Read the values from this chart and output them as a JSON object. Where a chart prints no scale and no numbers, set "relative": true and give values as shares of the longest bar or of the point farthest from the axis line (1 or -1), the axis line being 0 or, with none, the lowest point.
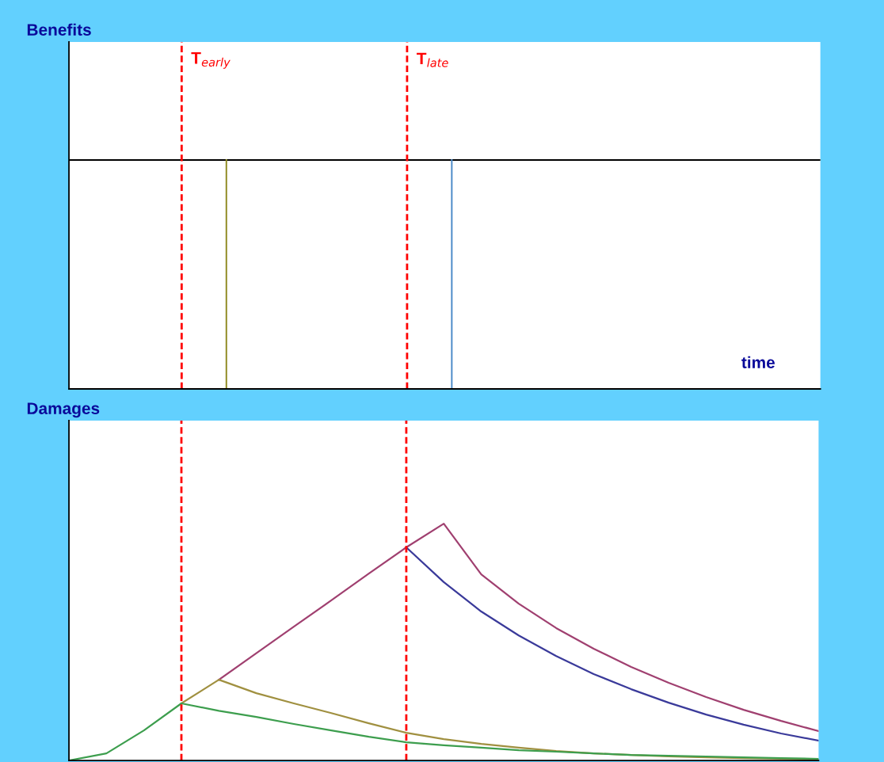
{
  "chart_data": [
    {
      "type": "other",
      "title": "Benefits",
      "xlabel": "time",
      "annotations": [
        "T$_{early}$",
        "T$_{late}$"
      ],
      "colors": [
        "#8f8a20",
        "#4a8ac8"
      ]
    },
    {
      "type": "line",
      "title": "Damages",
      "relative": true,
      "categories": [
        null,
        null,
        null,
        null,
        null,
        null,
        null,
        null,
        null,
        null,
        null,
        null,
        null,
        null,
        null,
        null,
        null,
        null,
        null,
        null,
        null
      ],
      "series": [
        {
          "color": "#3a3a9a",
          "values": [
            null,
            null,
            null,
            null,
            null,
            null,
            null,
            null,
            null,
            0.9,
            0.753,
            0.629,
            0.528,
            0.441,
            0.365,
            0.301,
            0.244,
            0.194,
            0.151,
            0.114,
            0.084
          ]
        },
        {
          "color": "#a04070",
          "values": [
            null,
            null,
            null,
            null,
            0.341,
            0.453,
            0.565,
            0.676,
            0.789,
            0.9,
            1.0,
            0.786,
            0.662,
            0.559,
            0.472,
            0.395,
            0.328,
            0.268,
            0.214,
            0.167,
            0.124
          ]
        },
        {
          "color": "#a09040",
          "values": [
            null,
            null,
            null,
            0.241,
            0.341,
            0.284,
            0.241,
            0.2,
            0.157,
            0.117,
            0.09,
            0.07,
            0.054,
            0.04,
            0.03,
            0.023,
            0.017,
            0.013,
            0.01,
            0.007,
            0.003
          ]
        },
        {
          "color": "#3d9e4e",
          "values": [
            0,
            0.03,
            0.127,
            0.241,
            0.21,
            0.184,
            0.154,
            0.127,
            0.1,
            0.077,
            0.064,
            0.054,
            0.043,
            0.037,
            0.03,
            0.023,
            0.02,
            0.017,
            0.013,
            0.01,
            0.007
          ]
        }
      ]
    }
  ]
}
